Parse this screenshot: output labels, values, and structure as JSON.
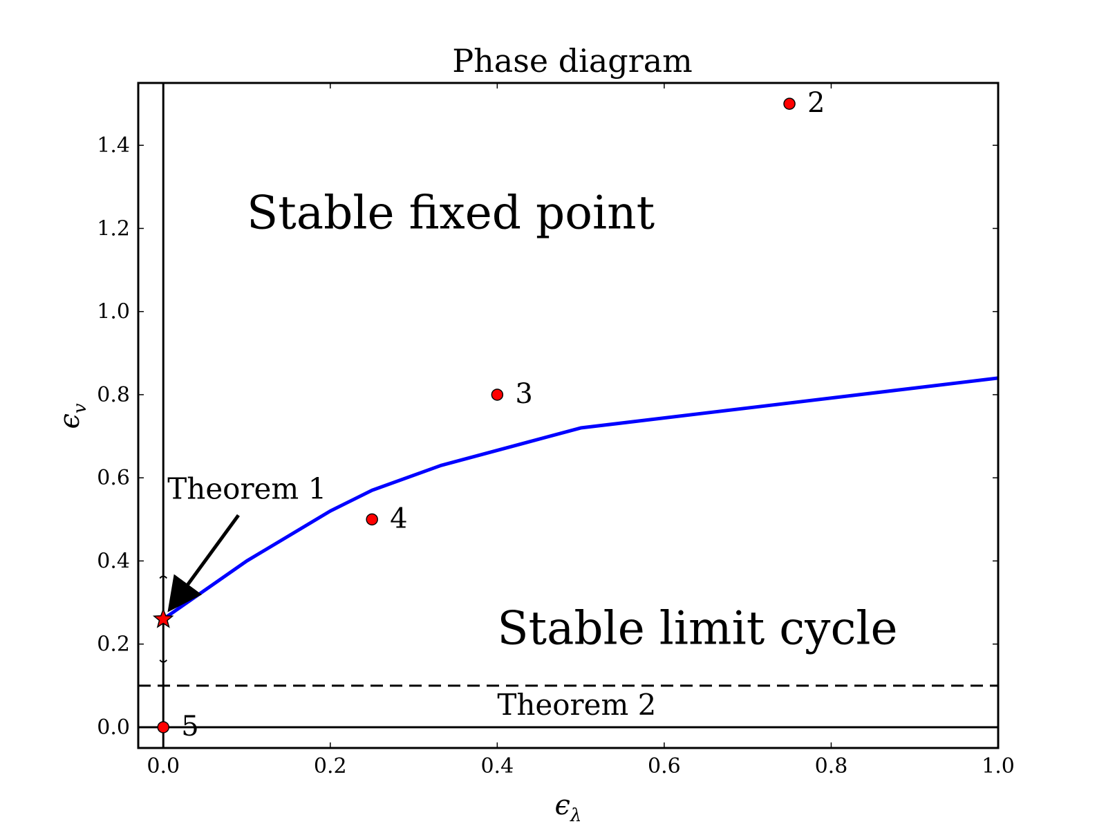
{
  "chart_data": {
    "type": "line",
    "title": "Phase diagram",
    "xlabel": "ϵ",
    "xlabel_sub": "λ",
    "ylabel": "ϵ",
    "ylabel_sub": "v",
    "xlim": [
      -0.03,
      1.0
    ],
    "ylim": [
      -0.05,
      1.55
    ],
    "xticks": [
      0.0,
      0.2,
      0.4,
      0.6,
      0.8,
      1.0
    ],
    "xtick_labels": [
      "0.0",
      "0.2",
      "0.4",
      "0.6",
      "0.8",
      "1.0"
    ],
    "yticks": [
      0.0,
      0.2,
      0.4,
      0.6,
      0.8,
      1.0,
      1.2,
      1.4
    ],
    "ytick_labels": [
      "0.0",
      "0.2",
      "0.4",
      "0.6",
      "0.8",
      "1.0",
      "1.2",
      "1.4"
    ],
    "grid": false,
    "series": [
      {
        "color": "#0000ff",
        "style": "solid",
        "x": [
          0.0,
          0.05,
          0.1,
          0.15,
          0.2,
          0.25,
          0.333,
          0.5,
          1.0
        ],
        "y": [
          0.26,
          0.33,
          0.4,
          0.46,
          0.52,
          0.57,
          0.63,
          0.72,
          0.84
        ]
      }
    ],
    "reference_lines": [
      {
        "orientation": "vertical",
        "value": 0.0,
        "style": "solid",
        "color": "#000000"
      },
      {
        "orientation": "horizontal",
        "value": 0.0,
        "style": "solid",
        "color": "#000000"
      },
      {
        "orientation": "horizontal",
        "value": 0.1,
        "style": "dashed",
        "color": "#000000"
      }
    ],
    "points": [
      {
        "label": "2",
        "x": 0.75,
        "y": 1.5,
        "color": "#ff0000"
      },
      {
        "label": "3",
        "x": 0.4,
        "y": 0.8,
        "color": "#ff0000"
      },
      {
        "label": "4",
        "x": 0.25,
        "y": 0.5,
        "color": "#ff0000"
      },
      {
        "label": "5",
        "x": 0.0,
        "y": 0.0,
        "color": "#ff0000"
      }
    ],
    "star": {
      "x": 0.0,
      "y": 0.26,
      "color": "#ff0000"
    },
    "range_marker": {
      "x": 0.0,
      "y_low": 0.155,
      "y_high": 0.365
    },
    "regions": [
      {
        "text": "Stable fixed point",
        "x": 0.1,
        "y": 1.2
      },
      {
        "text": "Stable limit cycle",
        "x": 0.4,
        "y": 0.2
      }
    ],
    "annotations": [
      {
        "text": "Theorem 1",
        "x": 0.005,
        "y": 0.55,
        "arrow_from": [
          0.09,
          0.51
        ],
        "arrow_to": [
          0.01,
          0.29
        ]
      },
      {
        "text": "Theorem 2",
        "x": 0.4,
        "y": 0.03
      }
    ]
  }
}
